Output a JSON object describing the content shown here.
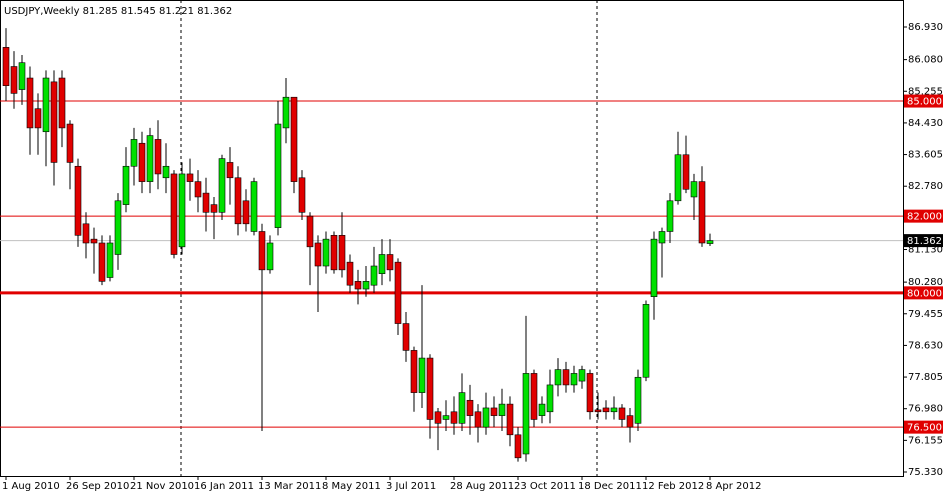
{
  "chart_data": {
    "type": "candlestick",
    "title": "USDJPY,Weekly  81.285 81.545 81.221 81.362",
    "categories": [
      "1 Aug 2010",
      null,
      null,
      null,
      null,
      null,
      null,
      null,
      "26 Sep 2010",
      null,
      null,
      null,
      null,
      null,
      null,
      null,
      "21 Nov 2010",
      null,
      null,
      null,
      null,
      null,
      null,
      null,
      "16 Jan 2011",
      null,
      null,
      null,
      null,
      null,
      null,
      null,
      "13 Mar 2011",
      null,
      null,
      null,
      null,
      null,
      null,
      null,
      "8 May 2011",
      null,
      null,
      null,
      null,
      null,
      null,
      null,
      "3 Jul 2011",
      null,
      null,
      null,
      null,
      null,
      null,
      null,
      "28 Aug 2011",
      null,
      null,
      null,
      null,
      null,
      null,
      null,
      "23 Oct 2011",
      null,
      null,
      null,
      null,
      null,
      null,
      null,
      "18 Dec 2011",
      null,
      null,
      null,
      null,
      null,
      null,
      null,
      "12 Feb 2012",
      null,
      null,
      null,
      null,
      null,
      null,
      null,
      "8 Apr 2012"
    ],
    "open": [
      86.4,
      85.9,
      85.3,
      85.6,
      84.8,
      84.2,
      85.5,
      85.6,
      84.4,
      83.3,
      81.8,
      81.4,
      81.3,
      80.4,
      81.0,
      82.3,
      83.3,
      83.9,
      82.9,
      84.0,
      83.0,
      83.1,
      81.2,
      83.1,
      82.9,
      82.6,
      82.3,
      82.1,
      83.4,
      83.0,
      82.4,
      81.6,
      81.6,
      80.6,
      81.7,
      84.3,
      85.1,
      83.0,
      82.0,
      81.3,
      80.7,
      81.5,
      81.5,
      80.8,
      80.3,
      80.1,
      80.2,
      80.5,
      81.0,
      80.8,
      79.2,
      78.5,
      77.4,
      78.3,
      76.9,
      76.7,
      76.9,
      76.6,
      77.2,
      76.9,
      76.5,
      77.0,
      76.8,
      77.1,
      76.3,
      75.8,
      77.9,
      76.8,
      76.9,
      77.6,
      78.0,
      77.6,
      77.7,
      77.9,
      76.95,
      77.0,
      76.9,
      77.0,
      76.8,
      76.6,
      77.8,
      79.9,
      81.3,
      81.6,
      82.4,
      83.6,
      82.5,
      82.9,
      81.285
    ],
    "high": [
      86.9,
      86.3,
      86.2,
      85.9,
      85.2,
      85.8,
      85.8,
      85.8,
      84.5,
      83.5,
      82.1,
      81.7,
      81.5,
      81.5,
      82.6,
      83.8,
      84.3,
      84.2,
      84.3,
      84.5,
      83.9,
      83.2,
      83.4,
      83.5,
      83.2,
      83.0,
      82.5,
      83.6,
      83.8,
      83.3,
      82.7,
      83.0,
      81.8,
      81.5,
      85.0,
      85.6,
      85.1,
      83.2,
      82.1,
      81.5,
      81.6,
      81.6,
      82.1,
      81.0,
      80.6,
      80.7,
      81.2,
      81.4,
      81.4,
      80.9,
      79.5,
      78.6,
      80.2,
      78.4,
      77.0,
      77.2,
      77.3,
      77.9,
      77.6,
      77.1,
      77.4,
      77.3,
      77.5,
      77.3,
      76.5,
      79.4,
      78.0,
      77.3,
      78.0,
      78.3,
      78.2,
      78.1,
      78.1,
      78.0,
      77.4,
      77.2,
      77.3,
      77.1,
      77.0,
      78.0,
      79.8,
      81.6,
      81.7,
      82.6,
      84.2,
      84.1,
      83.1,
      83.3,
      81.545
    ],
    "low": [
      85.0,
      84.8,
      84.9,
      83.6,
      83.6,
      83.3,
      82.8,
      83.8,
      82.7,
      81.2,
      80.9,
      80.5,
      80.2,
      80.3,
      80.6,
      82.1,
      82.8,
      82.6,
      82.6,
      82.7,
      82.6,
      80.9,
      81.0,
      82.4,
      82.1,
      81.6,
      81.4,
      81.9,
      82.3,
      81.5,
      81.6,
      81.5,
      76.4,
      80.5,
      81.5,
      83.9,
      82.6,
      81.9,
      80.2,
      79.5,
      80.5,
      80.5,
      80.4,
      80.0,
      79.7,
      79.9,
      80.0,
      80.2,
      80.3,
      78.9,
      78.2,
      76.9,
      77.0,
      76.2,
      75.9,
      76.4,
      76.3,
      76.4,
      76.3,
      76.1,
      76.3,
      76.5,
      76.4,
      76.0,
      75.6,
      75.6,
      76.5,
      76.6,
      76.6,
      77.3,
      77.4,
      77.4,
      77.5,
      76.7,
      76.7,
      76.7,
      76.7,
      76.5,
      76.1,
      76.4,
      77.7,
      79.3,
      80.4,
      81.3,
      82.3,
      82.6,
      81.9,
      81.2,
      81.221
    ],
    "close": [
      85.4,
      85.2,
      86.0,
      84.3,
      84.3,
      85.6,
      83.4,
      84.3,
      83.4,
      81.5,
      81.3,
      81.3,
      80.3,
      81.3,
      82.4,
      83.3,
      84.0,
      82.9,
      84.1,
      83.1,
      83.3,
      81.0,
      83.1,
      82.9,
      82.5,
      82.1,
      82.1,
      83.5,
      83.0,
      81.8,
      81.8,
      82.9,
      80.6,
      81.3,
      84.4,
      85.1,
      82.9,
      82.1,
      81.2,
      80.7,
      81.4,
      80.6,
      80.6,
      80.2,
      80.1,
      80.3,
      80.7,
      81.0,
      80.6,
      79.2,
      78.5,
      77.4,
      78.3,
      76.7,
      76.6,
      76.8,
      76.6,
      77.4,
      76.8,
      76.5,
      77.0,
      76.8,
      77.1,
      76.3,
      75.7,
      77.9,
      76.7,
      77.1,
      77.6,
      78.0,
      77.6,
      77.9,
      78.0,
      76.9,
      76.9,
      76.9,
      77.0,
      76.7,
      76.5,
      77.8,
      79.7,
      81.4,
      81.6,
      82.4,
      83.6,
      82.7,
      82.9,
      81.3,
      81.362
    ],
    "up_color": "#00e000",
    "down_color": "#e00000",
    "ylim": [
      75.226,
      87.634
    ],
    "yticks": [
      {
        "value": 86.93,
        "label": "86.930"
      },
      {
        "value": 86.08,
        "label": "86.080"
      },
      85.255,
      {
        "value": 84.43,
        "label": "84.430"
      },
      83.605,
      {
        "value": 82.78,
        "label": "82.780"
      },
      {
        "value": 81.13,
        "label": "81.130"
      },
      {
        "value": 80.28,
        "label": "80.280"
      },
      79.455,
      {
        "value": 78.63,
        "label": "78.630"
      },
      77.805,
      {
        "value": 76.98,
        "label": "76.980"
      },
      76.155,
      {
        "value": 75.33,
        "label": "75.330"
      }
    ],
    "levels": [
      {
        "value": 85,
        "label": "85.000",
        "color": "#e00000",
        "width": 1
      },
      {
        "value": 82,
        "label": "82.000",
        "color": "#e00000",
        "width": 1
      },
      {
        "value": 80,
        "label": "80.000",
        "color": "#e00000",
        "width": 3
      },
      {
        "value": 76.5,
        "label": "76.500",
        "color": "#e00000",
        "width": 1
      }
    ],
    "current_price": {
      "value": 81.362,
      "label": "81.362",
      "color": "#c0c0c0"
    }
  }
}
